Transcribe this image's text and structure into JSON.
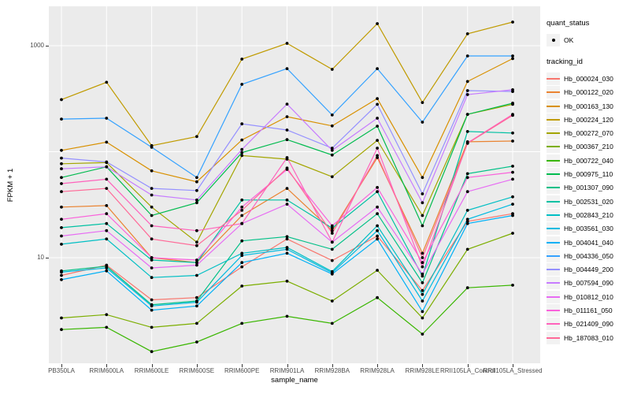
{
  "chart_data": {
    "type": "line",
    "title": "",
    "xlabel": "sample_name",
    "ylabel": "FPKM + 1",
    "y_scale": "log10",
    "y_tick_values": [
      1000,
      10
    ],
    "y_gridline_values": [
      1000,
      100,
      10,
      1
    ],
    "ylim": [
      0.99,
      2340
    ],
    "grid": true,
    "legend_position": "right",
    "legends": {
      "quant_status": {
        "title": "quant_status",
        "entries": [
          "OK"
        ],
        "marker": "point",
        "marker_color": "#000000"
      },
      "tracking_id": {
        "title": "tracking_id",
        "marker": "line"
      }
    },
    "point_marker": {
      "shape": "circle",
      "color": "#000000",
      "radius": 1.9
    },
    "colors": {
      "panel_bg": "#EBEBEB",
      "gridline": "#FFFFFF",
      "legend_key_bg": "#F2F2F2",
      "tick_text": "#4D4D4D"
    },
    "categories": [
      "PB350LA",
      "RRIM600LA",
      "RRIM600LE",
      "RRIM600SE",
      "RRIM600PE",
      "RRIM901LA",
      "RRIM928BA",
      "RRIM928LA",
      "RRIM928LE",
      "RRII105LA_Control",
      "RRII105LA_Stressed"
    ],
    "series": [
      {
        "name": "Hb_000024_030",
        "color": "#F8766D",
        "values": [
          6.8,
          8.5,
          4.0,
          4.2,
          8.2,
          15,
          9.4,
          16,
          4.9,
          22,
          26
        ]
      },
      {
        "name": "Hb_000122_020",
        "color": "#EA8331",
        "values": [
          30,
          31,
          10,
          9,
          25,
          45,
          18,
          88,
          11,
          124,
          126
        ]
      },
      {
        "name": "Hb_000163_130",
        "color": "#D89000",
        "values": [
          103,
          123,
          66,
          52,
          129,
          214,
          175,
          317,
          57,
          460,
          755
        ]
      },
      {
        "name": "Hb_000224_120",
        "color": "#C09B00",
        "values": [
          310,
          452,
          114,
          139,
          748,
          1052,
          598,
          1615,
          291,
          1294,
          1670
        ]
      },
      {
        "name": "Hb_000272_070",
        "color": "#A3A500",
        "values": [
          77,
          79,
          30,
          14,
          92,
          85,
          58,
          128,
          25,
          225,
          280
        ]
      },
      {
        "name": "Hb_000367_210",
        "color": "#7CAE00",
        "values": [
          2.7,
          2.9,
          2.2,
          2.4,
          5.4,
          6.0,
          3.9,
          7.6,
          2.7,
          12,
          17
        ]
      },
      {
        "name": "Hb_000722_040",
        "color": "#39B600",
        "values": [
          2.1,
          2.2,
          1.3,
          1.6,
          2.4,
          2.8,
          2.4,
          4.2,
          1.9,
          5.2,
          5.5
        ]
      },
      {
        "name": "Hb_000975_110",
        "color": "#00BB4E",
        "values": [
          57,
          72,
          25,
          33,
          98,
          130,
          93,
          174,
          20,
          225,
          287
        ]
      },
      {
        "name": "Hb_001307_090",
        "color": "#00C087",
        "values": [
          7.5,
          8.3,
          3.6,
          3.9,
          14.4,
          15.8,
          12,
          26,
          5.8,
          62,
          73
        ]
      },
      {
        "name": "Hb_002531_020",
        "color": "#00C1A3",
        "values": [
          19.2,
          21,
          9.5,
          9,
          35,
          35,
          19,
          42,
          6.7,
          155,
          150
        ]
      },
      {
        "name": "Hb_002843_210",
        "color": "#00BFC4",
        "values": [
          13.4,
          15,
          6.5,
          6.8,
          11,
          12.5,
          7.4,
          20,
          4.5,
          28,
          37.5
        ]
      },
      {
        "name": "Hb_003561_030",
        "color": "#00BAE0",
        "values": [
          7.3,
          8,
          3.5,
          3.8,
          10.5,
          12,
          7.2,
          18,
          3.9,
          23,
          32
        ]
      },
      {
        "name": "Hb_004041_040",
        "color": "#00B0F6",
        "values": [
          6.2,
          7.5,
          3.2,
          3.5,
          9,
          11,
          7.0,
          15,
          3.1,
          21,
          25
        ]
      },
      {
        "name": "Hb_004336_050",
        "color": "#35A2FF",
        "values": [
          203,
          207,
          110,
          57,
          432,
          608,
          222,
          608,
          190,
          800,
          800
        ]
      },
      {
        "name": "Hb_004449_200",
        "color": "#9590FF",
        "values": [
          87,
          80,
          45,
          43,
          183,
          160,
          108,
          280,
          40,
          377,
          370
        ]
      },
      {
        "name": "Hb_007594_090",
        "color": "#C77CFF",
        "values": [
          69,
          72,
          39,
          35,
          105,
          281,
          103,
          207,
          33,
          346,
          384
        ]
      },
      {
        "name": "Hb_010812_010",
        "color": "#E76BF3",
        "values": [
          16,
          18,
          8,
          8.5,
          21,
          32,
          14,
          30,
          7,
          42,
          55
        ]
      },
      {
        "name": "Hb_011161_050",
        "color": "#FA62DB",
        "values": [
          23,
          26,
          10,
          9.5,
          30,
          68,
          20,
          46,
          9,
          57,
          64
        ]
      },
      {
        "name": "Hb_021409_090",
        "color": "#FF62BC",
        "values": [
          50,
          55,
          20,
          18,
          21,
          88,
          14,
          108,
          8.2,
          121,
          225
        ]
      },
      {
        "name": "Hb_187083_010",
        "color": "#FF6A98",
        "values": [
          42,
          45,
          15,
          13,
          28,
          70,
          17,
          92,
          10,
          120,
          220
        ]
      }
    ]
  }
}
